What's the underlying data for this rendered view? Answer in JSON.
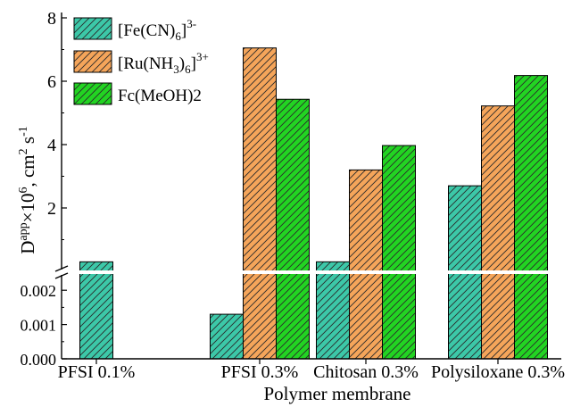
{
  "chart_data": {
    "type": "bar",
    "categories": [
      "PFSI 0.1%",
      "PFSI 0.3%",
      "Chitosan 0.3%",
      "Polysiloxane 0.3%"
    ],
    "series": [
      {
        "name": "[Fe(CN)6]3-",
        "color": "#3cc8a8",
        "pattern": "diagonal-hatch",
        "values": [
          0.3,
          0.0013,
          0.3,
          2.7
        ]
      },
      {
        "name": "[Ru(NH3)6]3+",
        "color": "#f5a55a",
        "pattern": "diagonal-hatch",
        "values": [
          null,
          7.05,
          3.2,
          5.22
        ]
      },
      {
        "name": "Fc(MeOH)2",
        "color": "#22d422",
        "pattern": "diagonal-hatch",
        "values": [
          null,
          5.43,
          3.97,
          6.18
        ]
      }
    ],
    "xlabel": "Polymer membrane",
    "ylabel": "Dapp×106, cm2 s-1",
    "y_axis_break": true,
    "lower_segment": {
      "ylim": [
        0,
        0.0025
      ],
      "ticks": [
        "0.000",
        "0.001",
        "0.002"
      ]
    },
    "upper_segment": {
      "ylim": [
        0,
        8
      ],
      "ticks": [
        "2",
        "4",
        "6",
        "8"
      ]
    },
    "legend_position": "top-left"
  }
}
